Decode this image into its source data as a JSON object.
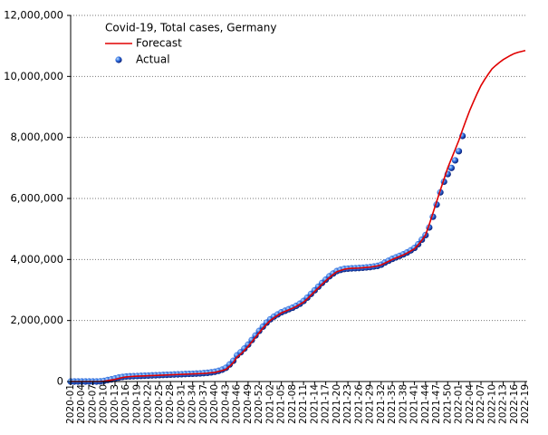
{
  "chart_data": {
    "type": "line",
    "title": "Covid-19, Total cases, Germany",
    "categories": [
      "2020-01",
      null,
      null,
      "2020-04",
      null,
      null,
      "2020-07",
      null,
      null,
      "2020-10",
      null,
      null,
      "2020-13",
      null,
      null,
      "2020-16",
      null,
      null,
      "2020-19",
      null,
      null,
      "2020-22",
      null,
      null,
      "2020-25",
      null,
      null,
      "2020-28",
      null,
      null,
      "2020-31",
      null,
      null,
      "2020-34",
      null,
      null,
      "2020-37",
      null,
      null,
      "2020-40",
      null,
      null,
      "2020-43",
      null,
      null,
      "2020-46",
      null,
      null,
      "2020-49",
      null,
      null,
      "2020-52",
      null,
      null,
      "2021-02",
      null,
      null,
      "2021-05",
      null,
      null,
      "2021-08",
      null,
      null,
      "2021-11",
      null,
      null,
      "2021-14",
      null,
      null,
      "2021-17",
      null,
      null,
      "2021-20",
      null,
      null,
      "2021-23",
      null,
      null,
      "2021-26",
      null,
      null,
      "2021-29",
      null,
      null,
      "2021-32",
      null,
      null,
      "2021-35",
      null,
      null,
      "2021-38",
      null,
      null,
      "2021-41",
      null,
      null,
      "2021-44",
      null,
      null,
      "2021-47",
      null,
      null,
      "2021-50",
      null,
      null,
      "2022-01",
      null,
      null,
      "2022-04",
      null,
      null,
      "2022-07",
      null,
      null,
      "2022-10",
      null,
      null,
      "2022-13",
      null,
      null,
      "2022-16",
      null,
      null,
      "2022-19"
    ],
    "series": [
      {
        "name": "Forecast",
        "type": "line",
        "color": "#e00000",
        "values": [
          0,
          0,
          0,
          0,
          0,
          0,
          0,
          0,
          0,
          10000,
          30000,
          50000,
          70000,
          100000,
          130000,
          150000,
          160000,
          170000,
          175000,
          180000,
          185000,
          190000,
          195000,
          200000,
          205000,
          210000,
          215000,
          220000,
          225000,
          230000,
          235000,
          240000,
          245000,
          250000,
          255000,
          260000,
          265000,
          275000,
          290000,
          300000,
          330000,
          360000,
          400000,
          500000,
          620000,
          800000,
          900000,
          1020000,
          1150000,
          1300000,
          1450000,
          1600000,
          1750000,
          1880000,
          2000000,
          2090000,
          2170000,
          2250000,
          2300000,
          2350000,
          2400000,
          2460000,
          2530000,
          2600000,
          2710000,
          2830000,
          2950000,
          3070000,
          3190000,
          3300000,
          3410000,
          3510000,
          3600000,
          3640000,
          3680000,
          3700000,
          3710000,
          3715000,
          3720000,
          3730000,
          3740000,
          3750000,
          3770000,
          3790000,
          3820000,
          3880000,
          3940000,
          4000000,
          4050000,
          4100000,
          4150000,
          4210000,
          4280000,
          4350000,
          4480000,
          4630000,
          4800000,
          5150000,
          5520000,
          5900000,
          6270000,
          6640000,
          7000000,
          7300000,
          7600000,
          7900000,
          8250000,
          8580000,
          8900000,
          9180000,
          9450000,
          9700000,
          9900000,
          10080000,
          10250000,
          10360000,
          10460000,
          10550000,
          10620000,
          10690000,
          10750000,
          10790000,
          10820000,
          10850000
        ]
      },
      {
        "name": "Actual",
        "type": "scatter",
        "color": "#1f4fd0",
        "values": [
          0,
          0,
          0,
          0,
          0,
          0,
          0,
          0,
          5000,
          20000,
          50000,
          70000,
          100000,
          130000,
          150000,
          165000,
          170000,
          175000,
          180000,
          185000,
          190000,
          195000,
          200000,
          205000,
          210000,
          215000,
          220000,
          225000,
          230000,
          235000,
          240000,
          245000,
          250000,
          255000,
          260000,
          265000,
          275000,
          285000,
          300000,
          320000,
          350000,
          390000,
          450000,
          560000,
          680000,
          860000,
          960000,
          1080000,
          1210000,
          1360000,
          1510000,
          1660000,
          1800000,
          1930000,
          2040000,
          2130000,
          2200000,
          2270000,
          2320000,
          2370000,
          2420000,
          2480000,
          2550000,
          2640000,
          2750000,
          2870000,
          2990000,
          3110000,
          3230000,
          3340000,
          3450000,
          3540000,
          3620000,
          3660000,
          3690000,
          3700000,
          3710000,
          3715000,
          3720000,
          3730000,
          3740000,
          3750000,
          3770000,
          3790000,
          3830000,
          3900000,
          3960000,
          4020000,
          4070000,
          4120000,
          4170000,
          4230000,
          4300000,
          4380000,
          4500000,
          4650000,
          4800000,
          5050000,
          5400000,
          5800000,
          6200000,
          6550000,
          6800000,
          7000000,
          7250000,
          7550000,
          8050000,
          null,
          null,
          null,
          null,
          null,
          null,
          null,
          null,
          null,
          null,
          null,
          null,
          null,
          null,
          null,
          null,
          null
        ]
      }
    ],
    "ylim": [
      0,
      12000000
    ],
    "yticks": [
      0,
      {
        "value": 2000000,
        "label": "2,000,000"
      },
      {
        "value": 4000000,
        "label": "4,000,000"
      },
      {
        "value": 6000000,
        "label": "6,000,000"
      },
      {
        "value": 8000000,
        "label": "8,000,000"
      },
      {
        "value": 10000000,
        "label": "10,000,000"
      },
      {
        "value": 12000000,
        "label": "12,000,000"
      }
    ],
    "grid": true,
    "legend": "upper left"
  }
}
